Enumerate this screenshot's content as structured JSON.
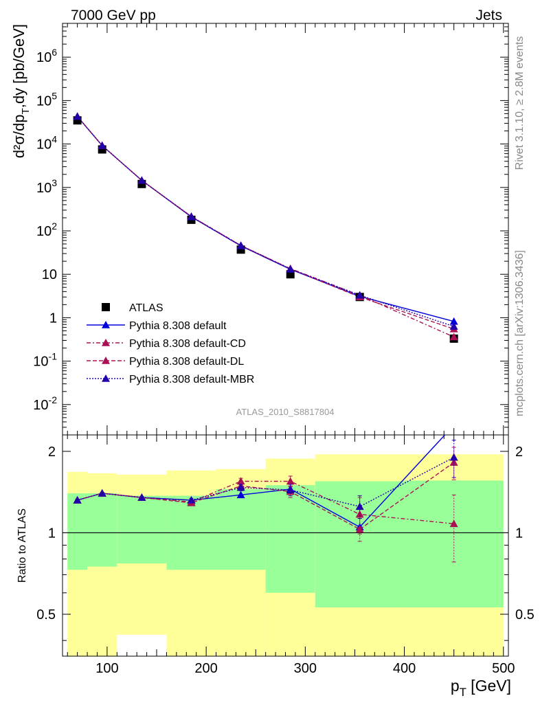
{
  "header": {
    "left": "7000 GeV pp",
    "right": "Jets"
  },
  "side_labels": {
    "rivet": "Rivet 3.1.10, ≥ 2.8M events",
    "mcplots": "mcplots.cern.ch [arXiv:1306.3436]"
  },
  "chart_data": [
    {
      "type": "scatter",
      "panel": "main",
      "analysis_label": "ATLAS_2010_S8817804",
      "ylabel": "d²σ/dp_T,dy [pb/GeV]",
      "yscale": "log",
      "xlim": [
        55,
        505
      ],
      "ylim": [
        0.002,
        6000000
      ],
      "ytick_labels": [
        "10^-2",
        "10^-1",
        "1",
        "10",
        "10^2",
        "10^3",
        "10^4",
        "10^5",
        "10^6"
      ],
      "legend_position": "lower-left",
      "series": [
        {
          "name": "ATLAS",
          "color": "#000000",
          "marker": "square",
          "x": [
            70,
            95,
            135,
            185,
            235,
            285,
            355,
            450
          ],
          "y": [
            35000,
            7500,
            1200,
            180,
            37,
            10,
            3.0,
            0.33
          ]
        },
        {
          "name": "Pythia 8.308 default",
          "color": "#0000dd",
          "marker": "triangle",
          "line": "solid",
          "x": [
            70,
            95,
            135,
            185,
            235,
            285,
            355,
            450
          ],
          "y": [
            43000,
            9200,
            1450,
            210,
            45,
            13,
            3.1,
            0.82
          ]
        },
        {
          "name": "Pythia 8.308 default-CD",
          "color": "#aa1155",
          "marker": "triangle",
          "line": "dashdot",
          "x": [
            70,
            95,
            135,
            185,
            235,
            285,
            355,
            450
          ],
          "y": [
            43000,
            9200,
            1450,
            215,
            46,
            13.5,
            3.3,
            0.36
          ]
        },
        {
          "name": "Pythia 8.308 default-DL",
          "color": "#aa1155",
          "marker": "triangle",
          "line": "dashed",
          "x": [
            70,
            95,
            135,
            185,
            235,
            285,
            355,
            450
          ],
          "y": [
            43000,
            9200,
            1450,
            213,
            46,
            13.3,
            3.0,
            0.55
          ]
        },
        {
          "name": "Pythia 8.308 default-MBR",
          "color": "#2200aa",
          "marker": "triangle",
          "line": "dotted",
          "x": [
            70,
            95,
            135,
            185,
            235,
            285,
            355,
            450
          ],
          "y": [
            43000,
            9200,
            1450,
            212,
            46,
            13.2,
            3.3,
            0.63
          ]
        }
      ]
    },
    {
      "type": "scatter",
      "panel": "ratio",
      "ylabel": "Ratio to ATLAS",
      "xlabel": "p_T [GeV]",
      "yscale": "log",
      "xlim": [
        55,
        505
      ],
      "ylim": [
        0.35,
        2.3
      ],
      "xtick_labels": [
        "100",
        "200",
        "300",
        "400",
        "500"
      ],
      "ytick_labels": [
        "0.5",
        "1",
        "2"
      ],
      "reference_line": 1,
      "bands": {
        "bin_edges": [
          60,
          80,
          110,
          160,
          210,
          260,
          310,
          400,
          500
        ],
        "green": {
          "low": [
            0.73,
            0.75,
            0.77,
            0.73,
            0.73,
            0.6,
            0.53,
            0.53,
            0.35
          ],
          "high": [
            1.4,
            1.4,
            1.37,
            1.37,
            1.45,
            1.5,
            1.55,
            1.56,
            2.05
          ]
        },
        "yellow": {
          "low": [
            0.35,
            0.35,
            0.42,
            0.35,
            0.35,
            0.35,
            0.35,
            0.35,
            0.35
          ],
          "high": [
            1.68,
            1.66,
            1.64,
            1.7,
            1.72,
            1.88,
            1.95,
            1.95,
            2.3
          ]
        }
      },
      "series": [
        {
          "name": "Pythia 8.308 default",
          "color": "#0000dd",
          "line": "solid",
          "x": [
            70,
            95,
            135,
            185,
            235,
            285,
            355,
            450
          ],
          "y": [
            1.32,
            1.4,
            1.35,
            1.32,
            1.38,
            1.45,
            1.05,
            2.5
          ]
        },
        {
          "name": "Pythia 8.308 default-CD",
          "color": "#aa1155",
          "line": "dashdot",
          "x": [
            70,
            95,
            135,
            185,
            235,
            285,
            355,
            450
          ],
          "y": [
            1.32,
            1.4,
            1.35,
            1.3,
            1.55,
            1.55,
            1.17,
            1.08
          ],
          "yerr": [
            0.01,
            0.01,
            0.01,
            0.02,
            0.04,
            0.07,
            0.18,
            0.3
          ]
        },
        {
          "name": "Pythia 8.308 default-DL",
          "color": "#aa1155",
          "line": "dashed",
          "x": [
            70,
            95,
            135,
            185,
            235,
            285,
            355,
            450
          ],
          "y": [
            1.32,
            1.4,
            1.35,
            1.29,
            1.49,
            1.42,
            1.03,
            1.82
          ],
          "yerr": [
            0.01,
            0.01,
            0.01,
            0.02,
            0.04,
            0.07,
            0.1,
            0.25
          ]
        },
        {
          "name": "Pythia 8.308 default-MBR",
          "color": "#2200aa",
          "line": "dotted",
          "x": [
            70,
            95,
            135,
            185,
            235,
            285,
            355,
            450
          ],
          "y": [
            1.32,
            1.4,
            1.35,
            1.32,
            1.47,
            1.44,
            1.25,
            1.9
          ],
          "yerr": [
            0.01,
            0.01,
            0.01,
            0.02,
            0.04,
            0.07,
            0.12,
            0.3
          ]
        }
      ]
    }
  ]
}
